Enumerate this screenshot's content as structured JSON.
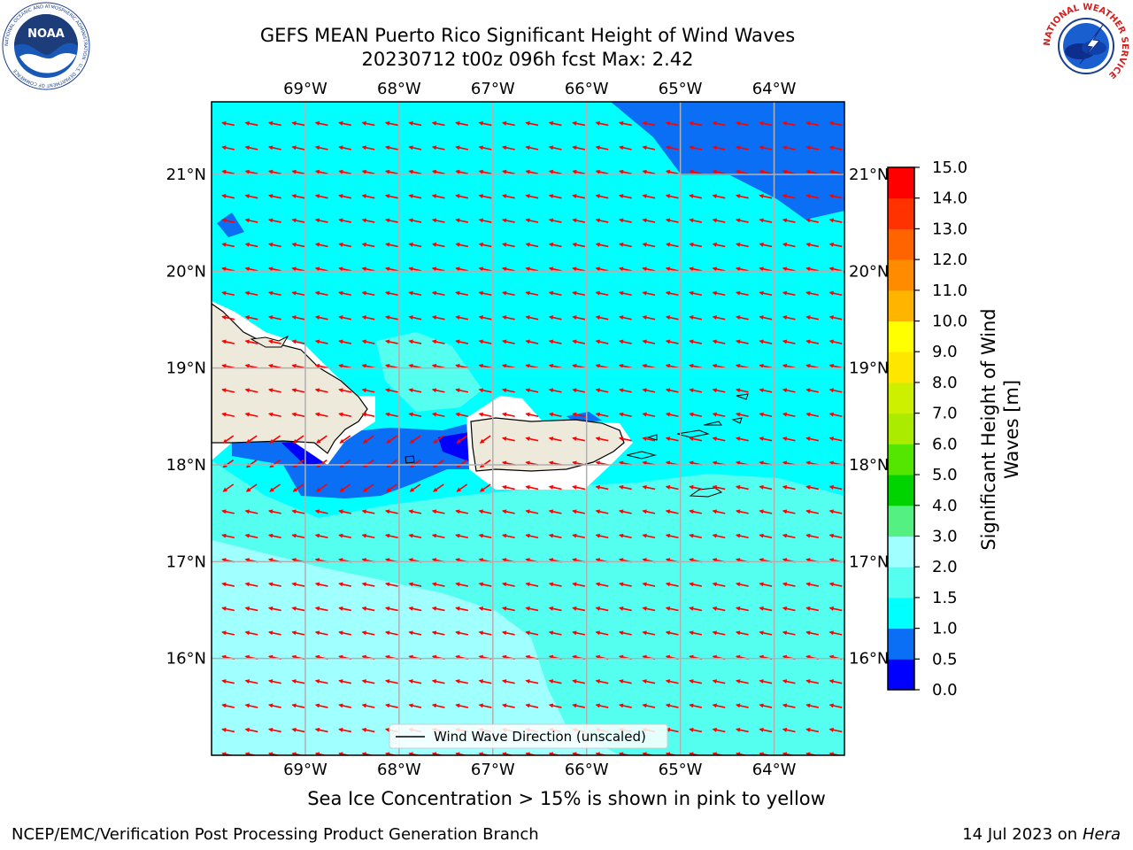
{
  "header": {
    "title_line1": "GEFS MEAN Puerto Rico Significant Height of Wind Waves",
    "title_line2": "20230712 t00z 096h fcst   Max: 2.42"
  },
  "logos": {
    "left": {
      "name": "noaa-logo",
      "text": "NOAA",
      "ring_text": "NATIONAL OCEANIC AND ATMOSPHERIC ADMINISTRATION · U.S. DEPARTMENT OF COMMERCE"
    },
    "right": {
      "name": "nws-logo",
      "ring_text": "NATIONAL WEATHER SERVICE"
    }
  },
  "map": {
    "lon_labels": [
      "69°W",
      "68°W",
      "67°W",
      "66°W",
      "65°W",
      "64°W"
    ],
    "lat_labels": [
      "21°N",
      "20°N",
      "19°N",
      "18°N",
      "17°N",
      "16°N"
    ],
    "lon_values": [
      -69,
      -68,
      -67,
      -66,
      -65,
      -64
    ],
    "lat_values": [
      21,
      20,
      19,
      18,
      17,
      16
    ],
    "lon_range": [
      -70.0,
      -63.25
    ],
    "lat_range": [
      15.0,
      21.75
    ],
    "arrow_color": "#ff0000",
    "land_color": "#eeeadb",
    "legend_label": "Wind Wave Direction (unscaled)"
  },
  "colorbar": {
    "label_line1": "Significant Height of Wind",
    "label_line2": "Waves [m]",
    "ticks": [
      "0.0",
      "0.5",
      "1.0",
      "1.5",
      "2.0",
      "3.0",
      "4.0",
      "5.0",
      "6.0",
      "7.0",
      "8.0",
      "9.0",
      "10.0",
      "11.0",
      "12.0",
      "13.0",
      "14.0",
      "15.0"
    ],
    "colors": [
      "#0000ff",
      "#0a6ff4",
      "#00ffff",
      "#55fff0",
      "#a0ffff",
      "#55f082",
      "#00d400",
      "#55e600",
      "#aaeb00",
      "#ccf000",
      "#ffe600",
      "#ffff00",
      "#ffb400",
      "#ff8c00",
      "#ff6400",
      "#ff3200",
      "#ff0000"
    ]
  },
  "caption": "Sea Ice Concentration > 15% is shown in pink to yellow",
  "footer": {
    "left": "NCEP/EMC/Verification Post Processing Product Generation Branch",
    "right_date": "14 Jul 2023 on ",
    "right_host": "Hera"
  }
}
